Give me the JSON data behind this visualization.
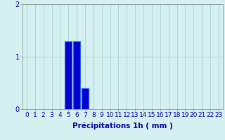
{
  "xlabel": "Précipitations 1h ( mm )",
  "background_color": "#d4f0f0",
  "bar_color": "#0000cc",
  "bar_edge_color": "#3366ff",
  "hours": [
    0,
    1,
    2,
    3,
    4,
    5,
    6,
    7,
    8,
    9,
    10,
    11,
    12,
    13,
    14,
    15,
    16,
    17,
    18,
    19,
    20,
    21,
    22,
    23
  ],
  "values": [
    0,
    0,
    0,
    0,
    0,
    1.3,
    1.3,
    0.4,
    0,
    0,
    0,
    0,
    0,
    0,
    0,
    0,
    0,
    0,
    0,
    0,
    0,
    0,
    0,
    0
  ],
  "ylim": [
    0,
    2
  ],
  "yticks": [
    0,
    1,
    2
  ],
  "xlim": [
    -0.5,
    23.5
  ],
  "grid_color": "#a8c8c8",
  "xlabel_fontsize": 7.5,
  "tick_fontsize": 6.5
}
